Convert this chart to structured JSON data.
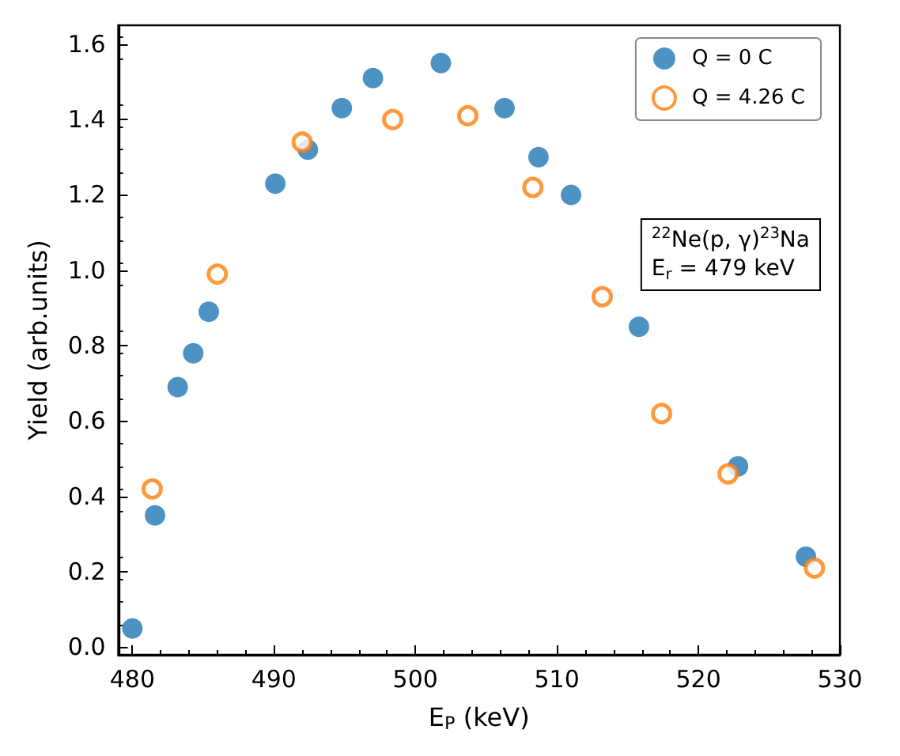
{
  "chart_data": {
    "type": "scatter",
    "xlabel": "E$_{P}$ (keV)",
    "ylabel": "Yield (arb.units)",
    "xlim": [
      479,
      530
    ],
    "xticks": [
      480,
      490,
      500,
      510,
      520,
      530
    ],
    "ylim": [
      -0.02,
      1.65
    ],
    "yticks": [
      {
        "value": 0,
        "label": "0.0"
      },
      0.2,
      0.4,
      0.6,
      0.8,
      {
        "value": 1,
        "label": "1.0"
      },
      1.2,
      1.4,
      1.6
    ],
    "marker": "circle",
    "legend": "top right",
    "grid": false,
    "annotations": [
      "$^{22}$Ne(p, γ)$^{23}$Na\nE$_{r}$ = 479 keV"
    ],
    "series": [
      {
        "name": "Q = 0 C",
        "color": "#1f77b4",
        "x": [
          480.0,
          481.6,
          483.2,
          484.3,
          485.4,
          490.1,
          492.4,
          494.8,
          497.0,
          501.8,
          506.3,
          508.7,
          511.0,
          515.8,
          522.8,
          527.6
        ],
        "values": [
          0.05,
          0.35,
          0.69,
          0.78,
          0.89,
          1.23,
          1.32,
          1.43,
          1.51,
          1.55,
          1.43,
          1.3,
          1.2,
          0.85,
          0.48,
          0.24
        ]
      },
      {
        "name": "Q = 4.26 C",
        "color": "#ff7f0e",
        "x": [
          481.4,
          486.0,
          492.0,
          498.4,
          503.7,
          508.3,
          513.2,
          517.4,
          522.1,
          528.2
        ],
        "values": [
          0.42,
          0.99,
          1.34,
          1.4,
          1.41,
          1.22,
          0.93,
          0.62,
          0.46,
          0.21
        ]
      }
    ]
  }
}
